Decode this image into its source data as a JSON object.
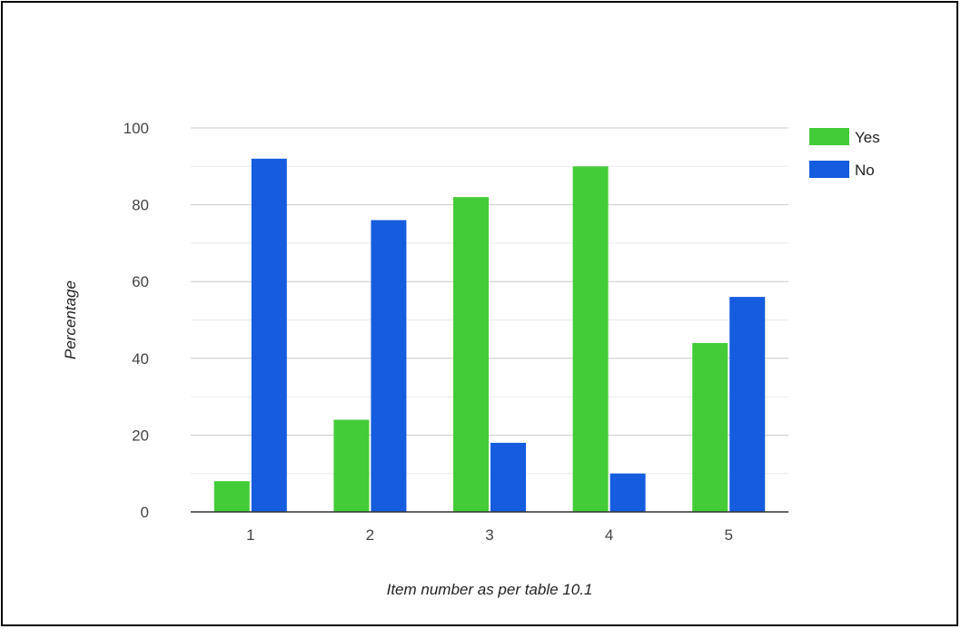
{
  "chart_data": {
    "type": "bar",
    "categories": [
      "1",
      "2",
      "3",
      "4",
      "5"
    ],
    "series": [
      {
        "name": "Yes",
        "values": [
          8,
          24,
          82,
          90,
          44
        ],
        "color": "#43cc37"
      },
      {
        "name": "No",
        "values": [
          92,
          76,
          18,
          10,
          56
        ],
        "color": "#155cde"
      }
    ],
    "title": "",
    "xlabel": "Item number as per table 10.1",
    "ylabel": "Percentage",
    "ylim": [
      0,
      100
    ],
    "yticks": [
      0,
      20,
      40,
      60,
      80,
      100
    ],
    "grid": true,
    "legend": "right"
  }
}
